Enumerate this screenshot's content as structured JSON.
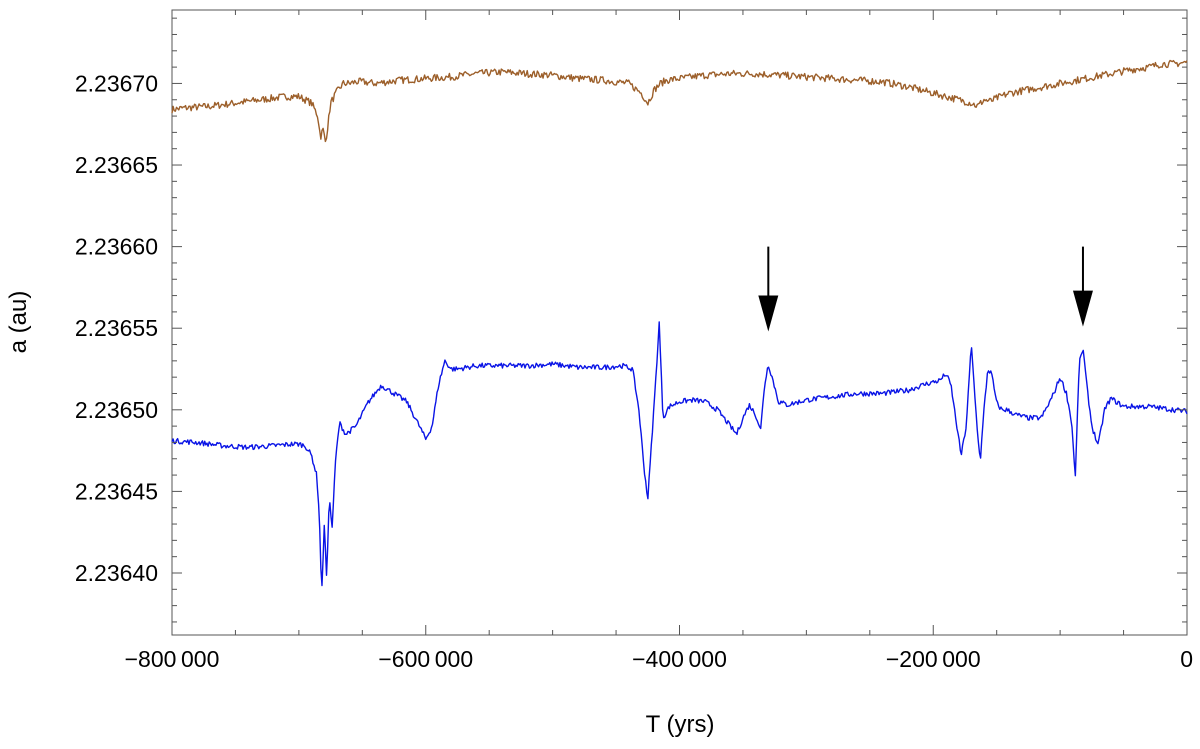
{
  "chart_data": {
    "type": "line",
    "title": "",
    "xlabel": "T (yrs)",
    "ylabel": "a (au)",
    "xlim": [
      -800000,
      0
    ],
    "ylim": [
      2.236362,
      2.236745
    ],
    "x_ticks": [
      -800000,
      -600000,
      -400000,
      -200000,
      0
    ],
    "x_tick_labels": [
      "−800 000",
      "−600 000",
      "−400 000",
      "−200 000",
      "0"
    ],
    "y_ticks": [
      2.2364,
      2.23645,
      2.2365,
      2.23655,
      2.2366,
      2.23665,
      2.2367
    ],
    "y_tick_labels": [
      "2.23640",
      "2.23645",
      "2.23650",
      "2.23655",
      "2.23660",
      "2.23665",
      "2.23670"
    ],
    "grid": false,
    "legend": "none",
    "series": [
      {
        "color": "#9C5F2A",
        "x": [
          -800000,
          -790000,
          -770000,
          -750000,
          -730000,
          -710000,
          -700000,
          -690000,
          -685000,
          -683000,
          -681000,
          -679000,
          -677000,
          -675000,
          -670000,
          -665000,
          -660000,
          -655000,
          -650000,
          -640000,
          -620000,
          -600000,
          -580000,
          -560000,
          -540000,
          -520000,
          -500000,
          -480000,
          -460000,
          -440000,
          -430000,
          -425000,
          -420000,
          -415000,
          -410000,
          -400000,
          -380000,
          -360000,
          -340000,
          -320000,
          -300000,
          -280000,
          -260000,
          -240000,
          -220000,
          -200000,
          -190000,
          -180000,
          -170000,
          -165000,
          -160000,
          -155000,
          -150000,
          -140000,
          -120000,
          -100000,
          -80000,
          -60000,
          -40000,
          -30000,
          -20000,
          -10000,
          0
        ],
        "y": [
          2.236684,
          2.236685,
          2.236686,
          2.236688,
          2.23669,
          2.236692,
          2.236692,
          2.236688,
          2.23668,
          2.236667,
          2.236672,
          2.236664,
          2.236675,
          2.236688,
          2.236695,
          2.2367,
          2.2367,
          2.236701,
          2.236701,
          2.2367,
          2.236702,
          2.236703,
          2.236704,
          2.236706,
          2.236707,
          2.236706,
          2.236705,
          2.236703,
          2.236702,
          2.2367,
          2.236694,
          2.236688,
          2.236696,
          2.2367,
          2.236702,
          2.236703,
          2.236705,
          2.236706,
          2.236706,
          2.236705,
          2.236704,
          2.236703,
          2.236702,
          2.236701,
          2.236698,
          2.236694,
          2.236692,
          2.23669,
          2.236688,
          2.236686,
          2.23669,
          2.236689,
          2.236691,
          2.236694,
          2.236697,
          2.2367,
          2.236703,
          2.236706,
          2.236709,
          2.23671,
          2.236712,
          2.236712,
          2.236713
        ]
      },
      {
        "color": "#0A14E6",
        "x": [
          -800000,
          -780000,
          -760000,
          -740000,
          -720000,
          -705000,
          -700000,
          -695000,
          -690000,
          -686000,
          -684000,
          -682000,
          -680000,
          -678000,
          -676000,
          -674000,
          -671000,
          -668000,
          -663000,
          -655000,
          -645000,
          -635000,
          -625000,
          -615000,
          -605000,
          -600000,
          -595000,
          -590000,
          -585000,
          -580000,
          -575000,
          -560000,
          -540000,
          -520000,
          -500000,
          -480000,
          -460000,
          -445000,
          -437000,
          -432000,
          -428000,
          -425000,
          -422000,
          -419000,
          -416000,
          -413000,
          -408000,
          -400000,
          -390000,
          -380000,
          -370000,
          -360000,
          -355000,
          -350000,
          -345000,
          -340000,
          -336000,
          -333000,
          -330000,
          -327000,
          -322000,
          -315000,
          -300000,
          -280000,
          -260000,
          -240000,
          -220000,
          -205000,
          -195000,
          -190000,
          -186000,
          -182000,
          -178000,
          -174000,
          -170000,
          -166000,
          -163000,
          -160000,
          -157000,
          -154000,
          -150000,
          -146000,
          -142000,
          -135000,
          -125000,
          -115000,
          -110000,
          -105000,
          -100000,
          -95000,
          -91000,
          -88000,
          -85000,
          -82000,
          -79000,
          -75000,
          -70000,
          -65000,
          -60000,
          -50000,
          -40000,
          -30000,
          -20000,
          -10000,
          0
        ],
        "y": [
          2.236481,
          2.23648,
          2.236478,
          2.236477,
          2.236478,
          2.236479,
          2.236479,
          2.236478,
          2.236472,
          2.23646,
          2.236438,
          2.236386,
          2.23643,
          2.236395,
          2.23645,
          2.236425,
          2.23647,
          2.236492,
          2.236485,
          2.23649,
          2.236505,
          2.236515,
          2.23651,
          2.236505,
          2.23649,
          2.236482,
          2.23649,
          2.236515,
          2.23653,
          2.236525,
          2.236525,
          2.236527,
          2.236527,
          2.236527,
          2.236528,
          2.236526,
          2.236526,
          2.236527,
          2.236525,
          2.2365,
          2.236465,
          2.236445,
          2.23648,
          2.236515,
          2.236553,
          2.236495,
          2.236502,
          2.236505,
          2.236506,
          2.236505,
          2.2365,
          2.23649,
          2.236485,
          2.236495,
          2.236503,
          2.236497,
          2.236488,
          2.236515,
          2.236528,
          2.23652,
          2.236505,
          2.236503,
          2.236506,
          2.236508,
          2.23651,
          2.23651,
          2.236512,
          2.236516,
          2.236518,
          2.236522,
          2.236515,
          2.236493,
          2.236472,
          2.23649,
          2.23654,
          2.236495,
          2.236468,
          2.2365,
          2.236525,
          2.236522,
          2.236504,
          2.2365,
          2.2365,
          2.236497,
          2.236495,
          2.236495,
          2.236502,
          2.23651,
          2.23652,
          2.23651,
          2.236493,
          2.236459,
          2.236528,
          2.236538,
          2.236515,
          2.23649,
          2.236478,
          2.2365,
          2.236507,
          2.236502,
          2.236502,
          2.236502,
          2.236501,
          2.2365,
          2.236499
        ]
      }
    ],
    "annotations": [
      {
        "type": "arrow",
        "x": -330000,
        "y_tail": 2.2366,
        "y_head": 2.236548
      },
      {
        "type": "arrow",
        "x": -82000,
        "y_tail": 2.2366,
        "y_head": 2.236551
      }
    ]
  }
}
